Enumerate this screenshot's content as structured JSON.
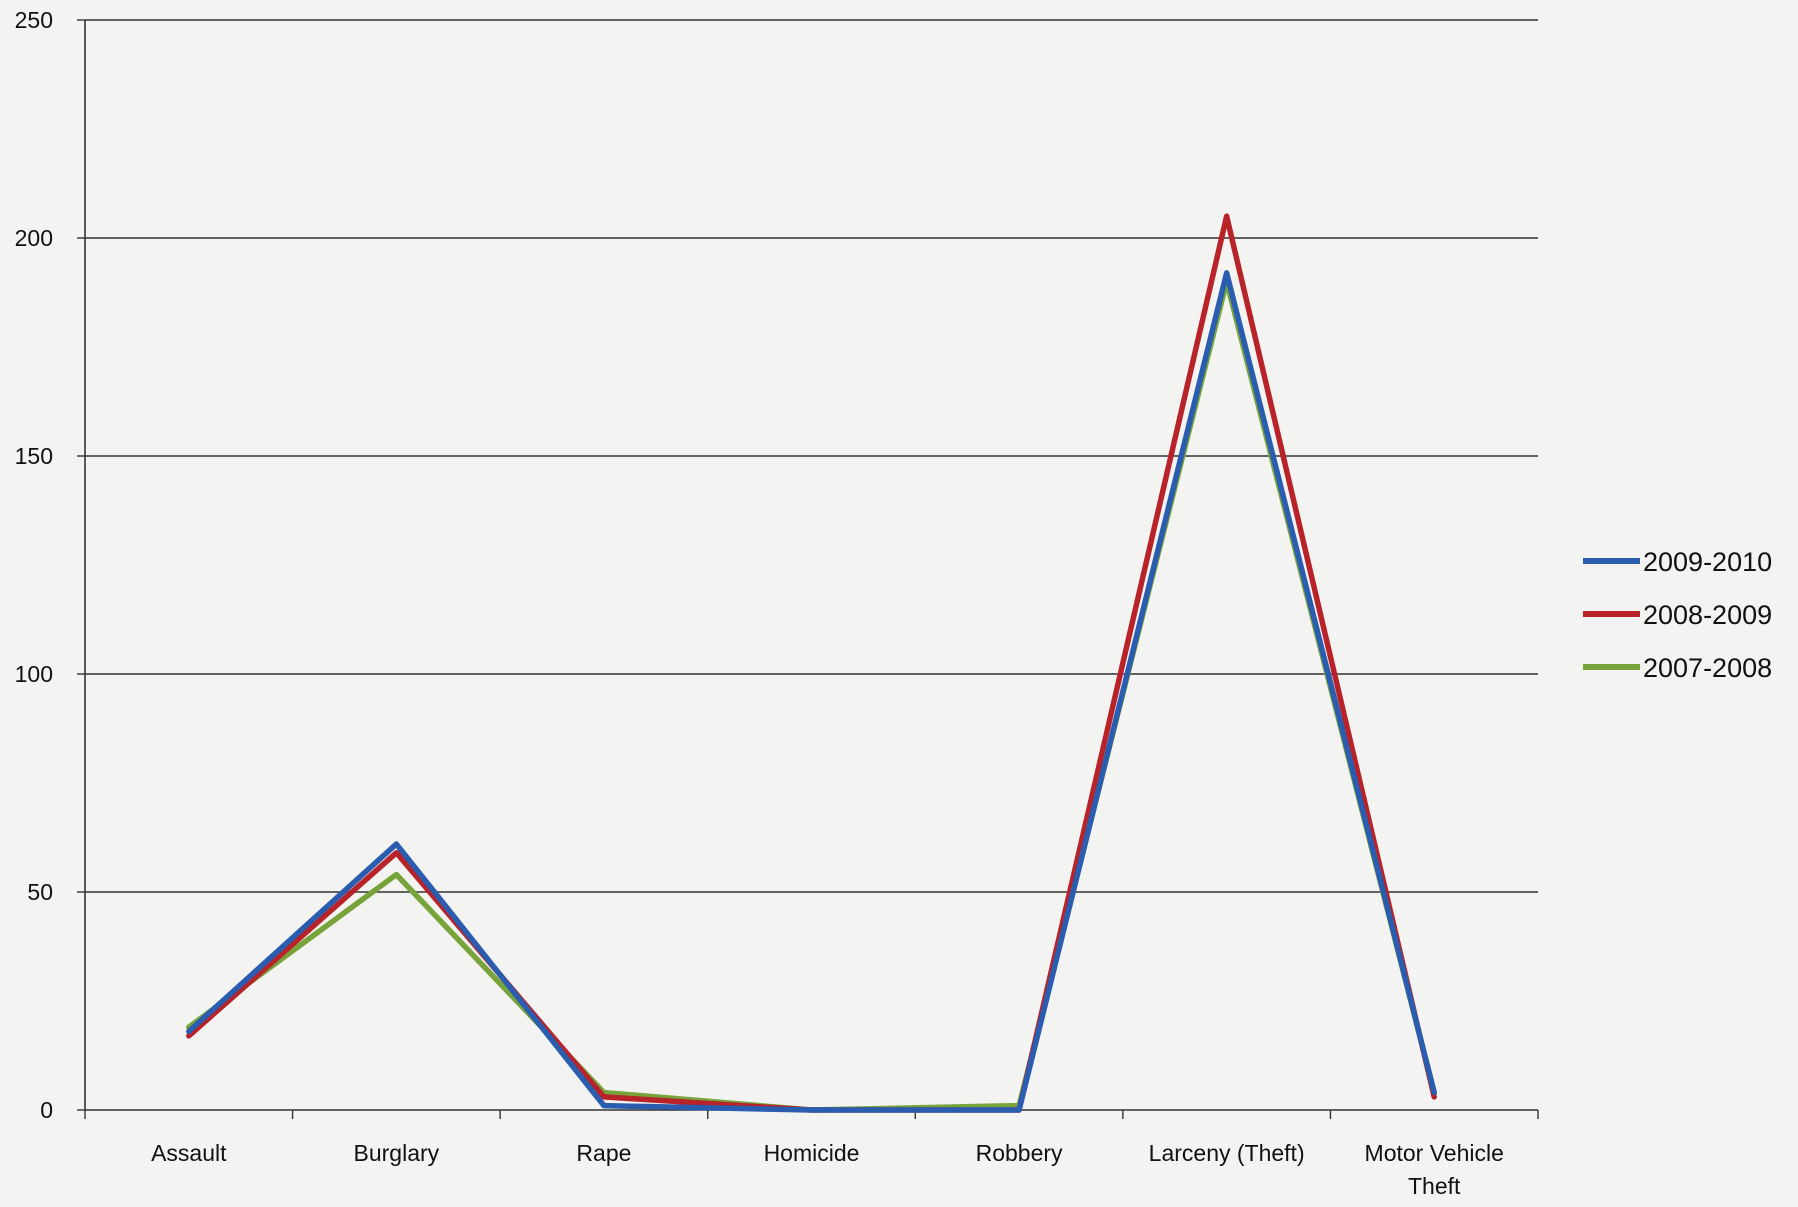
{
  "chart_data": {
    "type": "line",
    "categories": [
      "Assault",
      "Burglary",
      "Rape",
      "Homicide",
      "Robbery",
      "Larceny (Theft)",
      "Motor Vehicle Theft"
    ],
    "category_lines": [
      [
        "Assault"
      ],
      [
        "Burglary"
      ],
      [
        "Rape"
      ],
      [
        "Homicide"
      ],
      [
        "Robbery"
      ],
      [
        "Larceny (Theft)"
      ],
      [
        "Motor Vehicle",
        "Theft"
      ]
    ],
    "series": [
      {
        "name": "2007-2008",
        "color": "#77a33a",
        "values": [
          19,
          54,
          4,
          0,
          1,
          190,
          4
        ]
      },
      {
        "name": "2008-2009",
        "color": "#b8232a",
        "values": [
          17,
          59,
          3,
          0,
          0,
          205,
          3
        ]
      },
      {
        "name": "2009-2010",
        "color": "#2a5cb0",
        "values": [
          18,
          61,
          1,
          0,
          0,
          192,
          4
        ]
      }
    ],
    "legend_order": [
      "2009-2010",
      "2008-2009",
      "2007-2008"
    ],
    "ylim": [
      0,
      250
    ],
    "yticks": [
      0,
      50,
      100,
      150,
      200,
      250
    ],
    "grid": true,
    "legend_position": "right",
    "title": "",
    "xlabel": "",
    "ylabel": ""
  }
}
